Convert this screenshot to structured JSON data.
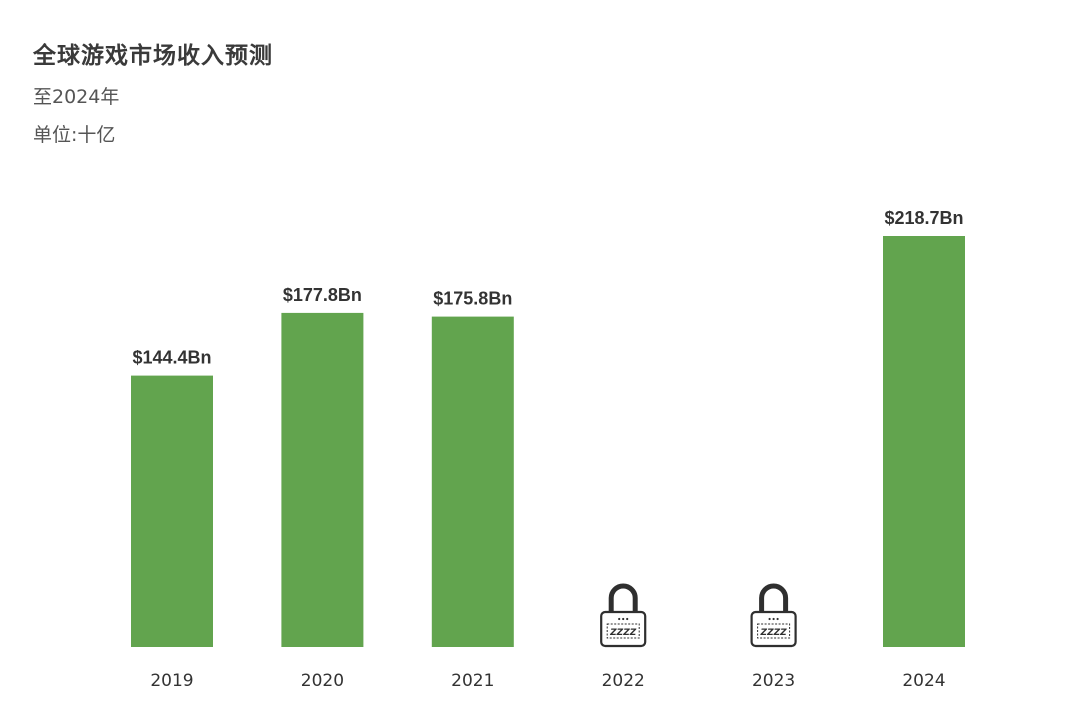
{
  "header": {
    "title": "全球游戏市场收入预测",
    "subtitle": "至2024年",
    "unit": "单位:十亿"
  },
  "colors": {
    "bar": "#62a44e",
    "lock_outline": "#2f2f2f",
    "text": "#333333"
  },
  "chart_data": {
    "type": "bar",
    "title": "全球游戏市场收入预测",
    "subtitle": "至2024年",
    "xlabel": "",
    "ylabel": "单位:十亿",
    "categories": [
      "2019",
      "2020",
      "2021",
      "2022",
      "2023",
      "2024"
    ],
    "values": [
      144.4,
      177.8,
      175.8,
      null,
      null,
      218.7
    ],
    "value_labels": [
      "$144.4Bn",
      "$177.8Bn",
      "$175.8Bn",
      "",
      "",
      "$218.7Bn"
    ],
    "locked": [
      false,
      false,
      false,
      true,
      true,
      false
    ],
    "lock_icon_text": "ZZZZ",
    "ylim": [
      0,
      218.7
    ],
    "grid": false,
    "legend": "none"
  }
}
